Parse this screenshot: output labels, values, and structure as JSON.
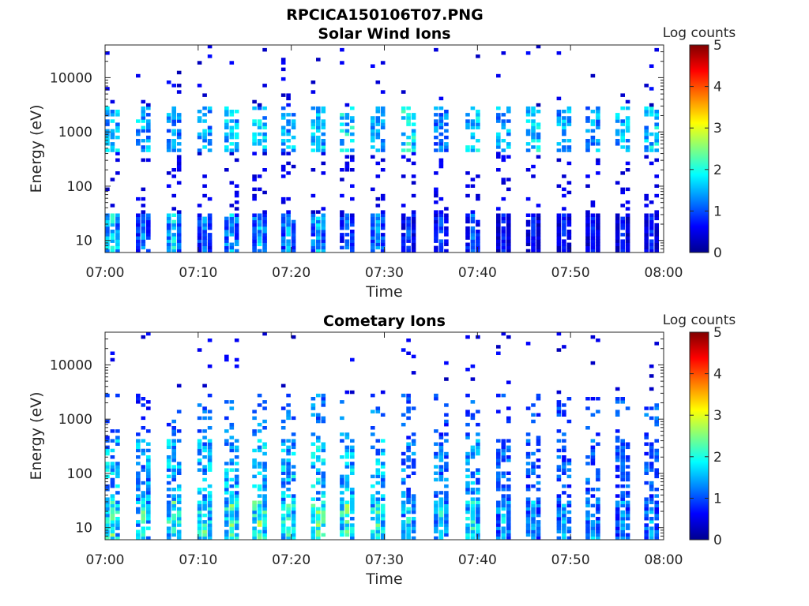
{
  "figure_title": "RPCICA150106T07.PNG",
  "colors": {
    "colormap": [
      "#00008f",
      "#0000ff",
      "#0080ff",
      "#00ffff",
      "#80ff80",
      "#ffff00",
      "#ff8000",
      "#ff0000",
      "#800000"
    ],
    "axis": "#262626"
  },
  "chart_data": [
    {
      "type": "heatmap",
      "title": "Solar Wind Ions",
      "xlabel": "Time",
      "ylabel": "Energy (eV)",
      "x_range": [
        "07:00",
        "08:00"
      ],
      "x_ticks": [
        "07:00",
        "07:10",
        "07:20",
        "07:30",
        "07:40",
        "07:50",
        "08:00"
      ],
      "y_scale": "log",
      "y_range": [
        6,
        40000
      ],
      "y_ticks": [
        {
          "value": 10,
          "label": "10"
        },
        {
          "value": 100,
          "label": "100"
        },
        {
          "value": 1000,
          "label": "1000"
        },
        {
          "value": 10000,
          "label": "10000"
        }
      ],
      "colorbar": {
        "label": "Log counts",
        "range": [
          0,
          5
        ],
        "ticks": [
          "0",
          "1",
          "2",
          "3",
          "4",
          "5"
        ]
      },
      "scans": [
        {
          "t": 0.8,
          "low": 2.2,
          "mid": 2.0,
          "sparse": 0.8
        },
        {
          "t": 4.1,
          "low": 1.6,
          "mid": 1.9,
          "sparse": 0.6
        },
        {
          "t": 7.4,
          "low": 2.1,
          "mid": 1.7,
          "sparse": 0.7
        },
        {
          "t": 10.7,
          "low": 1.5,
          "mid": 1.8,
          "sparse": 0.6
        },
        {
          "t": 13.6,
          "low": 1.9,
          "mid": 2.0,
          "sparse": 0.7
        },
        {
          "t": 16.6,
          "low": 1.8,
          "mid": 2.1,
          "sparse": 0.8
        },
        {
          "t": 19.7,
          "low": 1.7,
          "mid": 1.9,
          "sparse": 0.7
        },
        {
          "t": 22.9,
          "low": 1.9,
          "mid": 2.0,
          "sparse": 0.6
        },
        {
          "t": 26.0,
          "low": 1.4,
          "mid": 2.2,
          "sparse": 0.7
        },
        {
          "t": 29.3,
          "low": 1.6,
          "mid": 1.7,
          "sparse": 0.8
        },
        {
          "t": 32.6,
          "low": 1.2,
          "mid": 2.4,
          "sparse": 0.9
        },
        {
          "t": 36.1,
          "low": 1.3,
          "mid": 1.6,
          "sparse": 0.7
        },
        {
          "t": 39.5,
          "low": 1.4,
          "mid": 2.1,
          "sparse": 0.8
        },
        {
          "t": 42.8,
          "low": 0.9,
          "mid": 1.8,
          "sparse": 0.7
        },
        {
          "t": 46.0,
          "low": 1.0,
          "mid": 2.2,
          "sparse": 0.8
        },
        {
          "t": 49.3,
          "low": 1.0,
          "mid": 1.9,
          "sparse": 0.7
        },
        {
          "t": 52.4,
          "low": 1.0,
          "mid": 1.8,
          "sparse": 0.6
        },
        {
          "t": 55.6,
          "low": 0.9,
          "mid": 2.0,
          "sparse": 0.7
        },
        {
          "t": 58.7,
          "low": 1.0,
          "mid": 2.1,
          "sparse": 0.8
        }
      ]
    },
    {
      "type": "heatmap",
      "title": "Cometary Ions",
      "xlabel": "Time",
      "ylabel": "Energy (eV)",
      "x_range": [
        "07:00",
        "08:00"
      ],
      "x_ticks": [
        "07:00",
        "07:10",
        "07:20",
        "07:30",
        "07:40",
        "07:50",
        "08:00"
      ],
      "y_scale": "log",
      "y_range": [
        6,
        40000
      ],
      "y_ticks": [
        {
          "value": 10,
          "label": "10"
        },
        {
          "value": 100,
          "label": "100"
        },
        {
          "value": 1000,
          "label": "1000"
        },
        {
          "value": 10000,
          "label": "10000"
        }
      ],
      "colorbar": {
        "label": "Log counts",
        "range": [
          0,
          5
        ],
        "ticks": [
          "0",
          "1",
          "2",
          "3",
          "4",
          "5"
        ]
      },
      "scans": [
        {
          "t": 0.8,
          "low": 2.6,
          "mid": 1.2,
          "sparse": 0.5
        },
        {
          "t": 4.1,
          "low": 2.4,
          "mid": 1.0,
          "sparse": 0.4
        },
        {
          "t": 7.4,
          "low": 2.6,
          "mid": 1.3,
          "sparse": 0.5
        },
        {
          "t": 10.7,
          "low": 2.5,
          "mid": 1.4,
          "sparse": 0.5
        },
        {
          "t": 13.6,
          "low": 2.6,
          "mid": 1.5,
          "sparse": 0.6
        },
        {
          "t": 16.6,
          "low": 2.8,
          "mid": 1.6,
          "sparse": 0.6
        },
        {
          "t": 19.7,
          "low": 2.7,
          "mid": 1.5,
          "sparse": 0.5
        },
        {
          "t": 22.9,
          "low": 2.9,
          "mid": 1.6,
          "sparse": 0.5
        },
        {
          "t": 26.0,
          "low": 2.7,
          "mid": 1.7,
          "sparse": 0.6
        },
        {
          "t": 29.3,
          "low": 2.5,
          "mid": 1.6,
          "sparse": 0.6
        },
        {
          "t": 32.6,
          "low": 2.1,
          "mid": 1.3,
          "sparse": 0.6
        },
        {
          "t": 36.1,
          "low": 2.1,
          "mid": 1.2,
          "sparse": 0.5
        },
        {
          "t": 39.5,
          "low": 2.3,
          "mid": 1.4,
          "sparse": 0.5
        },
        {
          "t": 42.8,
          "low": 1.9,
          "mid": 1.2,
          "sparse": 0.5
        },
        {
          "t": 46.0,
          "low": 1.8,
          "mid": 1.3,
          "sparse": 0.6
        },
        {
          "t": 49.3,
          "low": 1.8,
          "mid": 1.3,
          "sparse": 0.5
        },
        {
          "t": 52.4,
          "low": 1.9,
          "mid": 1.2,
          "sparse": 0.5
        },
        {
          "t": 55.6,
          "low": 1.7,
          "mid": 1.3,
          "sparse": 0.6
        },
        {
          "t": 58.7,
          "low": 1.8,
          "mid": 1.4,
          "sparse": 0.6
        }
      ]
    }
  ]
}
